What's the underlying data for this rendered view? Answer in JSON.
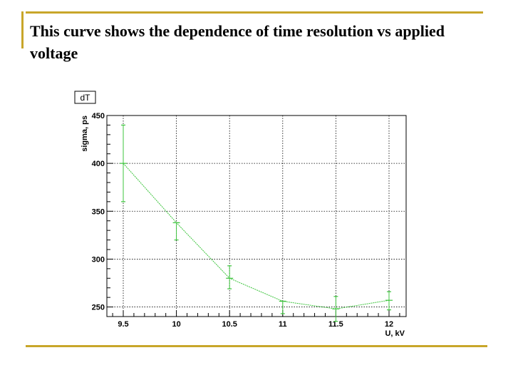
{
  "title": "This curve shows the dependence of time resolution vs applied voltage",
  "colors": {
    "accent_rule": "#c8a62a",
    "series": "#3cc43c",
    "grid": "#000000"
  },
  "chart_data": {
    "type": "line",
    "stat_label": "dT",
    "xlabel": "U, kV",
    "ylabel": "sigma, ps",
    "xlim": [
      9.5,
      12
    ],
    "ylim": [
      240,
      450
    ],
    "x_ticks": [
      9.5,
      10,
      10.5,
      11,
      11.5,
      12
    ],
    "x_tick_labels": [
      "9.5",
      "10",
      "10.5",
      "11",
      "11.5",
      "12"
    ],
    "y_ticks": [
      250,
      300,
      350,
      400,
      450
    ],
    "y_tick_labels": [
      "250",
      "300",
      "350",
      "400",
      "450"
    ],
    "grid": true,
    "series": [
      {
        "x": [
          9.5,
          10,
          10.5,
          11,
          11.5,
          12
        ],
        "y": [
          400,
          338,
          280,
          256,
          248,
          257
        ],
        "err_low": [
          360,
          320,
          269,
          243,
          235,
          247
        ],
        "err_high": [
          440,
          338,
          293,
          256,
          261,
          266
        ]
      }
    ]
  }
}
